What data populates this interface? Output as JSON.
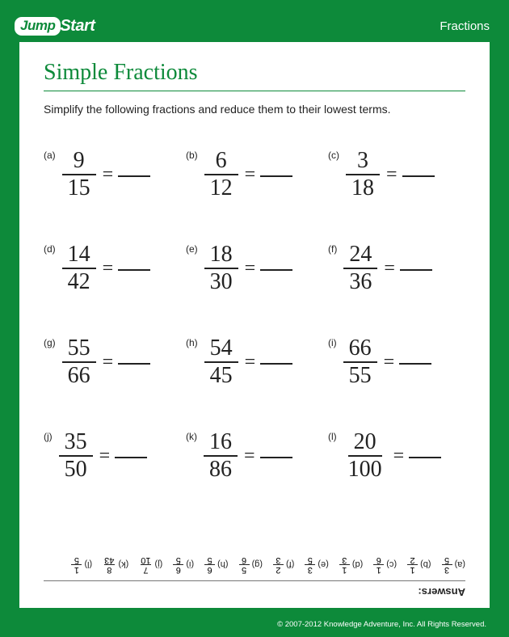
{
  "brand": {
    "badge": "Jump",
    "text": "Start"
  },
  "category": "Fractions",
  "worksheet": {
    "title": "Simple Fractions",
    "instructions": "Simplify the following fractions and reduce them to their lowest terms.",
    "title_color": "#0d8a3a",
    "problems": [
      {
        "label": "(a)",
        "num": "9",
        "den": "15"
      },
      {
        "label": "(b)",
        "num": "6",
        "den": "12"
      },
      {
        "label": "(c)",
        "num": "3",
        "den": "18"
      },
      {
        "label": "(d)",
        "num": "14",
        "den": "42"
      },
      {
        "label": "(e)",
        "num": "18",
        "den": "30"
      },
      {
        "label": "(f)",
        "num": "24",
        "den": "36"
      },
      {
        "label": "(g)",
        "num": "55",
        "den": "66"
      },
      {
        "label": "(h)",
        "num": "54",
        "den": "45"
      },
      {
        "label": "(i)",
        "num": "66",
        "den": "55"
      },
      {
        "label": "(j)",
        "num": "35",
        "den": "50"
      },
      {
        "label": "(k)",
        "num": "16",
        "den": "86"
      },
      {
        "label": "(l)",
        "num": "20",
        "den": "100"
      }
    ]
  },
  "answers": {
    "heading": "Answers:",
    "items": [
      {
        "label": "(a)",
        "num": "3",
        "den": "5"
      },
      {
        "label": "(b)",
        "num": "1",
        "den": "2"
      },
      {
        "label": "(c)",
        "num": "1",
        "den": "6"
      },
      {
        "label": "(d)",
        "num": "1",
        "den": "3"
      },
      {
        "label": "(e)",
        "num": "3",
        "den": "5"
      },
      {
        "label": "(f)",
        "num": "2",
        "den": "3"
      },
      {
        "label": "(g)",
        "num": "5",
        "den": "6"
      },
      {
        "label": "(h)",
        "num": "6",
        "den": "5"
      },
      {
        "label": "(i)",
        "num": "6",
        "den": "5"
      },
      {
        "label": "(j)",
        "num": "7",
        "den": "10"
      },
      {
        "label": "(k)",
        "num": "8",
        "den": "43"
      },
      {
        "label": "(l)",
        "num": "1",
        "den": "5"
      }
    ]
  },
  "footer": "© 2007-2012 Knowledge Adventure, Inc. All Rights Reserved.",
  "colors": {
    "page_bg": "#0d8a3a",
    "sheet_bg": "#ffffff",
    "text": "#222222"
  }
}
